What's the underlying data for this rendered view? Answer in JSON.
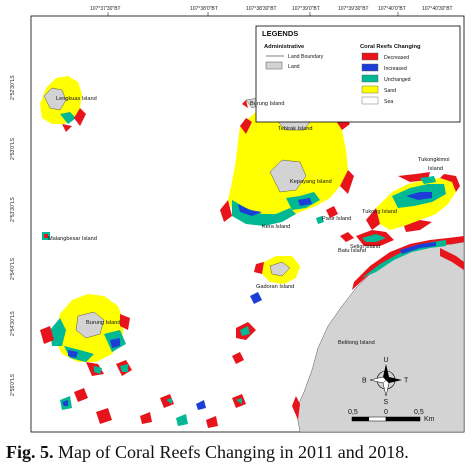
{
  "caption": {
    "label": "Fig. 5.",
    "text": "Map of Coral Reefs Changing in 2011 and 2018."
  },
  "grid": {
    "top_ticks": [
      "107°37'30\"BT",
      "107°38'0\"BT",
      "107°38'30\"BT",
      "107°39'0\"BT",
      "107°39'30\"BT",
      "107°40'0\"BT",
      "107°40'30\"BT"
    ],
    "left_ticks": [
      "2°52'30\"LS",
      "2°53'0\"LS",
      "2°53'30\"LS",
      "2°54'0\"LS",
      "2°54'30\"LS",
      "2°55'0\"LS"
    ]
  },
  "legend": {
    "title": "LEGENDS",
    "administrative_heading": "Administrative",
    "administrative_items": [
      {
        "symbol": "line",
        "label": "Land Boundary"
      },
      {
        "symbol": "fill",
        "label": "Land",
        "color": "#d3d3d3"
      }
    ],
    "coral_heading": "Coral Reefs Changing",
    "coral_items": [
      {
        "label": "Decreased",
        "color": "#e8141c"
      },
      {
        "label": "Increased",
        "color": "#1b3fd6"
      },
      {
        "label": "Unchanged",
        "color": "#00b894"
      },
      {
        "label": "Sand",
        "color": "#ffff00"
      },
      {
        "label": "Sea",
        "color": "#ffffff"
      }
    ]
  },
  "islands": {
    "lengkuas": "Lengkuas Island",
    "tebirak": "Tebirak Island",
    "kepayang": "Kepayang Island",
    "kera": "Kera Island",
    "burung_top": "Burung Island",
    "tukongkimoi": "Tukongkimoi Island",
    "pasir": "Pasir Island",
    "tukong": "Tukong Island",
    "batu": "Batu Island",
    "malangbesar": "Malangbesar Island",
    "seligi": "Seligi Island",
    "gadoran": "Gadoran Island",
    "burung": "Burung Island",
    "belitong": "Belitong Island"
  },
  "north_arrow": {
    "n": "U",
    "s": "S",
    "e": "T",
    "w": "B"
  },
  "scale_bar": {
    "labels": [
      "0,5",
      "0",
      "0,5"
    ],
    "unit": "Km"
  },
  "colors": {
    "decreased": "#e8141c",
    "increased": "#1b3fd6",
    "unchanged": "#00b894",
    "sand": "#ffff00",
    "land": "#d3d3d3",
    "sea": "#ffffff"
  }
}
